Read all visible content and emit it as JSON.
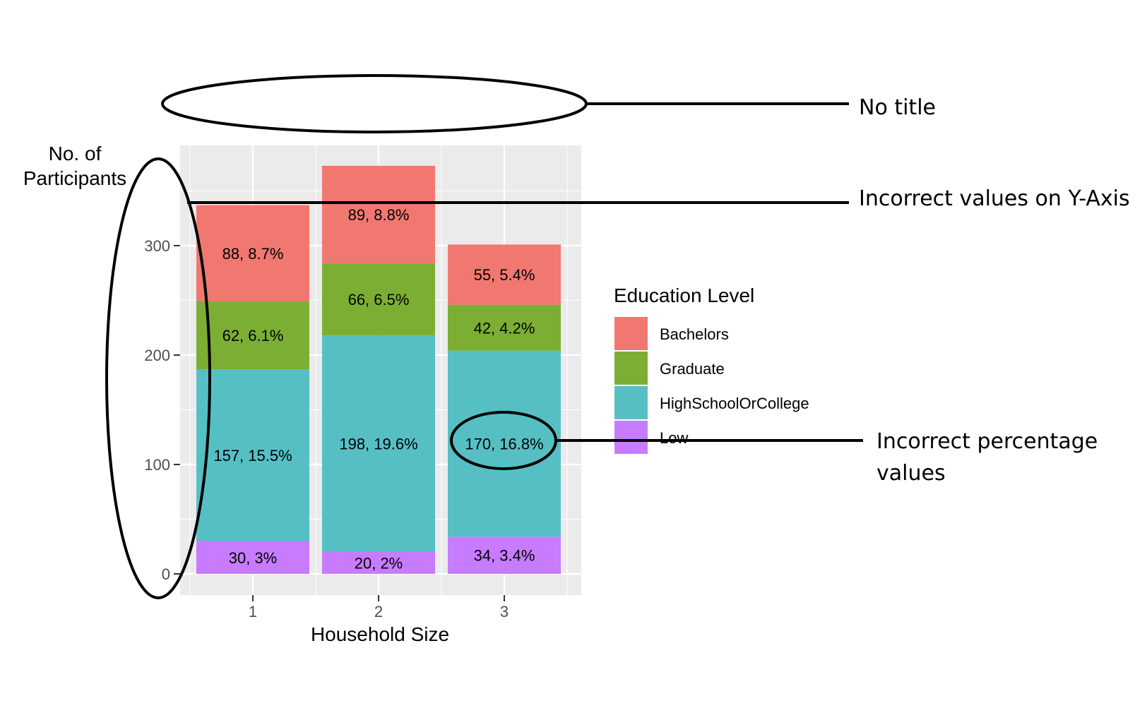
{
  "chart_data": {
    "type": "bar",
    "stacked": true,
    "title": "",
    "xlabel": "Household Size",
    "ylabel_lines": [
      "No. of",
      "Participants"
    ],
    "categories": [
      "1",
      "2",
      "3"
    ],
    "ylim": [
      0,
      373
    ],
    "yticks": [
      0,
      100,
      200,
      300
    ],
    "grid": true,
    "legend_title": "Education Level",
    "legend_position": "right",
    "series": [
      {
        "name": "Low",
        "color": "#C77CFF",
        "values": [
          30,
          20,
          34
        ],
        "labels": [
          "30, 3%",
          "20, 2%",
          "34, 3.4%"
        ]
      },
      {
        "name": "HighSchoolOrCollege",
        "color": "#56BFC4",
        "values": [
          157,
          198,
          170
        ],
        "labels": [
          "157, 15.5%",
          "198, 19.6%",
          "170, 16.8%"
        ]
      },
      {
        "name": "Graduate",
        "color": "#7CAE34",
        "values": [
          62,
          66,
          42
        ],
        "labels": [
          "62, 6.1%",
          "66, 6.5%",
          "42, 4.2%"
        ]
      },
      {
        "name": "Bachelors",
        "color": "#F07870",
        "values": [
          88,
          89,
          55
        ],
        "labels": [
          "88, 8.7%",
          "89, 8.8%",
          "55, 5.4%"
        ]
      }
    ],
    "legend_order": [
      "Bachelors",
      "Graduate",
      "HighSchoolOrCollege",
      "Low"
    ]
  },
  "annotations": {
    "no_title": "No title",
    "y_axis": "Incorrect values on Y-Axis",
    "percentage_line1": "Incorrect percentage",
    "percentage_line2": "values"
  },
  "colors": {
    "panel_background": "#EBEBEB",
    "grid": "#FFFFFF",
    "annotation": "#000000"
  }
}
